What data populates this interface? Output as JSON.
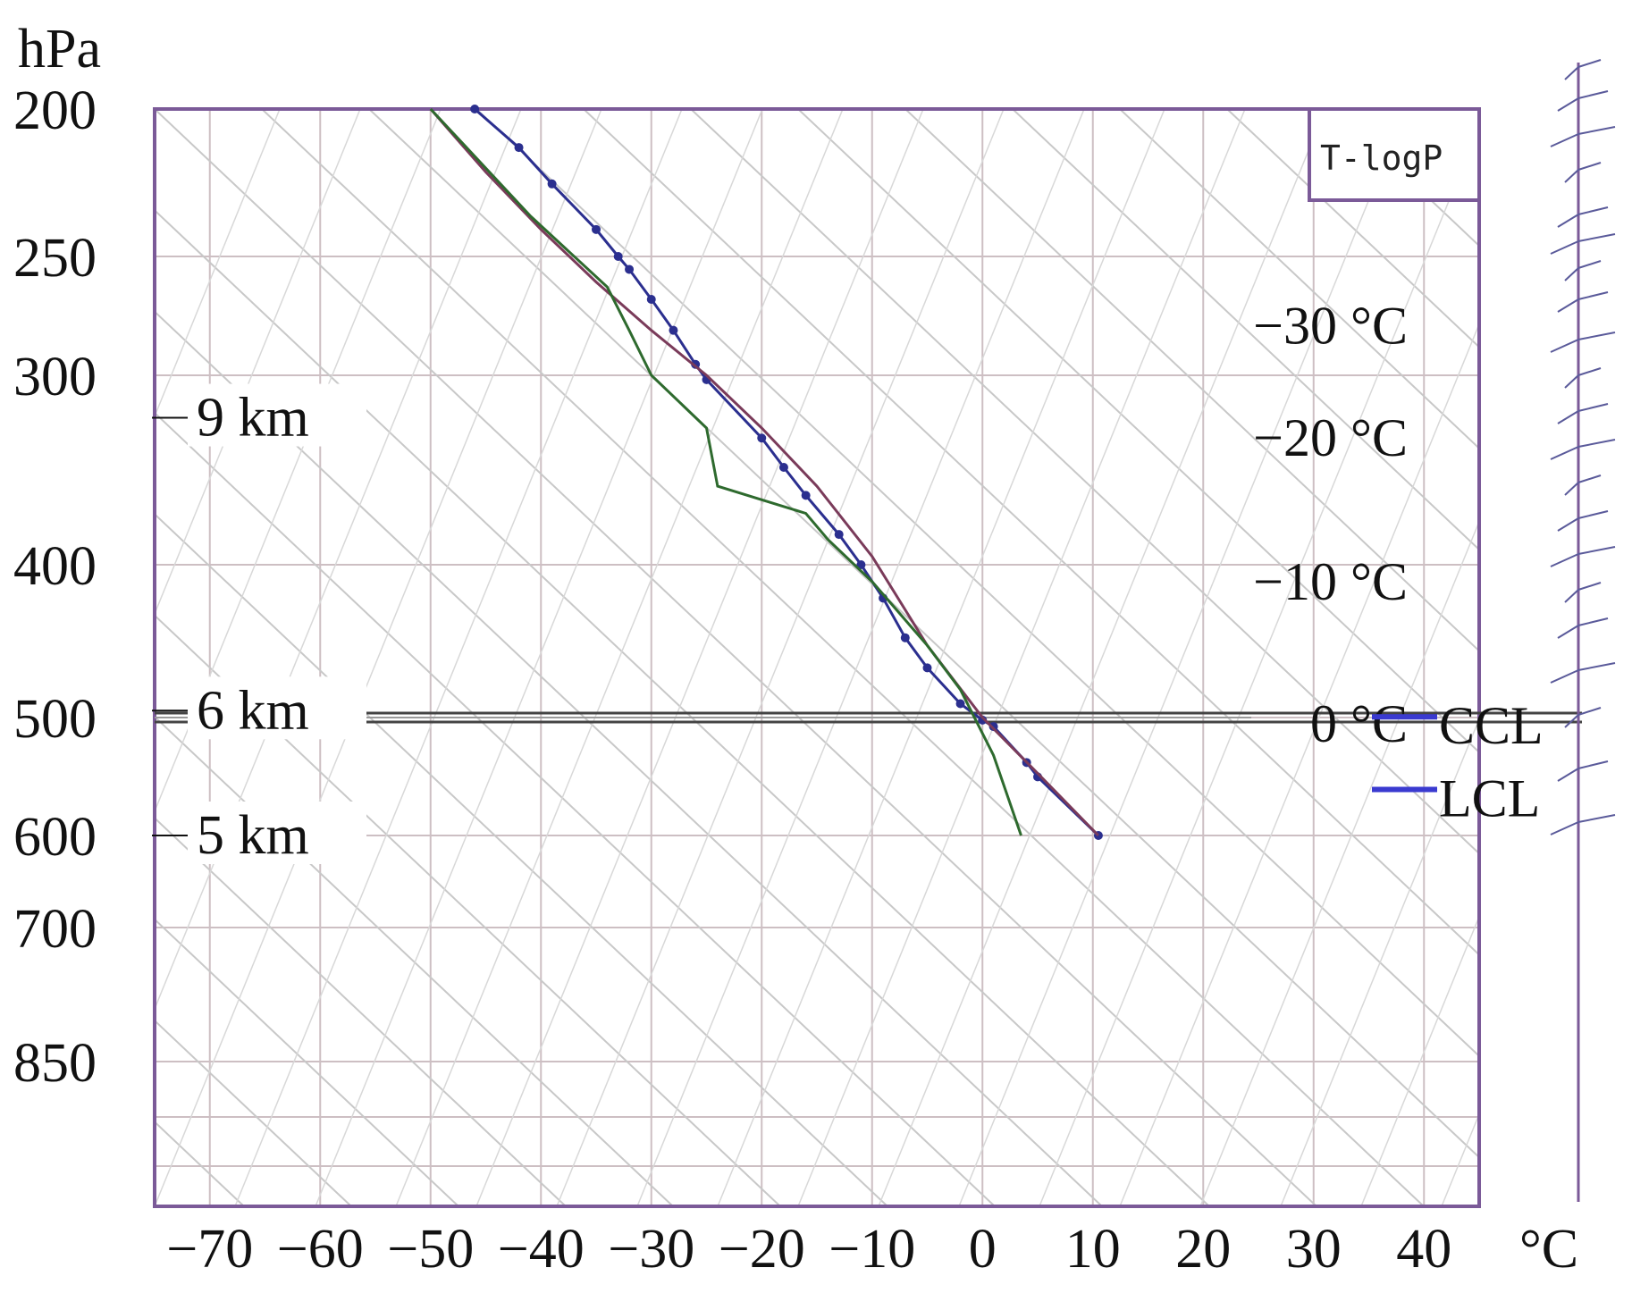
{
  "chart_data": {
    "type": "line",
    "title": "T-logP",
    "y_unit_label": "hPa",
    "x_unit_label": "°C",
    "xlim": [
      -75,
      45
    ],
    "x_ticks": [
      -70,
      -60,
      -50,
      -40,
      -30,
      -20,
      -10,
      0,
      10,
      20,
      30,
      40
    ],
    "x_tick_labels": [
      "−70",
      "−60",
      "−50",
      "−40",
      "−30",
      "−20",
      "−10",
      "0",
      "10",
      "20",
      "30",
      "40"
    ],
    "y_ticks": [
      {
        "p": 200,
        "label": "200"
      },
      {
        "p": 250,
        "label": "250"
      },
      {
        "p": 300,
        "label": "300"
      },
      {
        "p": 400,
        "label": "400"
      },
      {
        "p": 500,
        "label": "500"
      },
      {
        "p": 600,
        "label": "600"
      },
      {
        "p": 700,
        "label": "700"
      },
      {
        "p": 850,
        "label": "850"
      }
    ],
    "height_markers": [
      {
        "label": "9 km",
        "p": 320
      },
      {
        "label": "6 km",
        "p": 495
      },
      {
        "label": "5 km",
        "p": 600
      }
    ],
    "isotherm_labels": [
      {
        "text": "−30 °C",
        "p": 278
      },
      {
        "text": "−20 °C",
        "p": 330
      },
      {
        "text": "−10 °C",
        "p": 410
      },
      {
        "text": "0 °C",
        "p": 505
      }
    ],
    "level_labels": [
      {
        "text": "CCL",
        "p": 505
      },
      {
        "text": "LCL",
        "p": 565
      }
    ],
    "series": [
      {
        "color": "#2b2f8f",
        "markers": true,
        "points": [
          {
            "t": -46,
            "p": 200
          },
          {
            "t": -42,
            "p": 212
          },
          {
            "t": -39,
            "p": 224
          },
          {
            "t": -35,
            "p": 240
          },
          {
            "t": -33,
            "p": 250
          },
          {
            "t": -32,
            "p": 255
          },
          {
            "t": -30,
            "p": 267
          },
          {
            "t": -28,
            "p": 280
          },
          {
            "t": -26,
            "p": 295
          },
          {
            "t": -25,
            "p": 302
          },
          {
            "t": -20,
            "p": 330
          },
          {
            "t": -18,
            "p": 345
          },
          {
            "t": -16,
            "p": 360
          },
          {
            "t": -13,
            "p": 382
          },
          {
            "t": -11,
            "p": 400
          },
          {
            "t": -9,
            "p": 420
          },
          {
            "t": -7,
            "p": 445
          },
          {
            "t": -5,
            "p": 465
          },
          {
            "t": -2,
            "p": 490
          },
          {
            "t": 0,
            "p": 502
          },
          {
            "t": 1,
            "p": 507
          },
          {
            "t": 4,
            "p": 536
          },
          {
            "t": 5,
            "p": 548
          },
          {
            "t": 10.5,
            "p": 600
          }
        ]
      },
      {
        "color": "#7a3b5a",
        "markers": false,
        "points": [
          {
            "t": -50,
            "p": 200
          },
          {
            "t": -45,
            "p": 220
          },
          {
            "t": -40,
            "p": 240
          },
          {
            "t": -35,
            "p": 260
          },
          {
            "t": -30,
            "p": 280
          },
          {
            "t": -25,
            "p": 300
          },
          {
            "t": -20,
            "p": 325
          },
          {
            "t": -15,
            "p": 355
          },
          {
            "t": -10,
            "p": 395
          },
          {
            "t": -5,
            "p": 450
          },
          {
            "t": 0,
            "p": 500
          },
          {
            "t": 5,
            "p": 545
          },
          {
            "t": 10.5,
            "p": 600
          }
        ]
      },
      {
        "color": "#2e6a2e",
        "markers": false,
        "points": [
          {
            "t": -50,
            "p": 200
          },
          {
            "t": -41,
            "p": 235
          },
          {
            "t": -34,
            "p": 262
          },
          {
            "t": -32,
            "p": 280
          },
          {
            "t": -30,
            "p": 300
          },
          {
            "t": -25,
            "p": 325
          },
          {
            "t": -24,
            "p": 355
          },
          {
            "t": -16,
            "p": 370
          },
          {
            "t": -14,
            "p": 385
          },
          {
            "t": -10,
            "p": 410
          },
          {
            "t": -5,
            "p": 450
          },
          {
            "t": -2,
            "p": 480
          },
          {
            "t": 1,
            "p": 530
          },
          {
            "t": 3.5,
            "p": 600
          }
        ]
      }
    ],
    "legend_swatch_color": "#3a3ad0",
    "frame_color": "#7b5a98",
    "grid_color": "#cdbfc3",
    "diagonal_color": "#c8c8c8"
  }
}
